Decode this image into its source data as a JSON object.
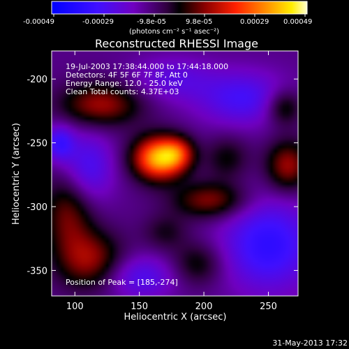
{
  "colorbar": {
    "ticks": [
      "-0.00049",
      "-0.00029",
      "-9.8e-05",
      "9.8e-05",
      "0.00029",
      "0.00049"
    ],
    "unit_label": "(photons cm⁻² s⁻¹ asec⁻²)"
  },
  "plot": {
    "title": "Reconstructed RHESSI Image",
    "xlabel": "Heliocentric X (arcsec)",
    "ylabel": "Heliocentric Y (arcsec)",
    "info_lines": [
      "19-Jul-2003 17:38:44.000 to 17:44:18.000",
      "Detectors: 4F 5F 6F 7F 8F, Att 0",
      "Energy Range: 12.0 - 25.0 keV",
      "Clean    Total counts: 4.37E+03"
    ],
    "peak_label": "Position of Peak = [185,-274]",
    "timestamp": "31-May-2013 17:32"
  },
  "chart_data": {
    "type": "heatmap",
    "title": "Reconstructed RHESSI Image",
    "xlabel": "Heliocentric X (arcsec)",
    "ylabel": "Heliocentric Y (arcsec)",
    "xlim": [
      82,
      273
    ],
    "ylim": [
      -370,
      -178
    ],
    "xticks": [
      100,
      150,
      200,
      250
    ],
    "yticks": [
      -200,
      -250,
      -300,
      -350
    ],
    "clim": [
      -0.00049,
      0.00049
    ],
    "colormap": "blue-black-red-yellow-white",
    "peak": {
      "x": 185,
      "y": -274
    },
    "blobs": [
      {
        "x": 165,
        "y": -262,
        "sx": 14,
        "sy": 12,
        "v": 0.00049
      },
      {
        "x": 180,
        "y": -258,
        "sx": 9,
        "sy": 9,
        "v": 0.0002
      },
      {
        "x": 120,
        "y": -220,
        "sx": 22,
        "sy": 12,
        "v": 0.00024
      },
      {
        "x": 95,
        "y": -305,
        "sx": 14,
        "sy": 22,
        "v": 0.0002
      },
      {
        "x": 112,
        "y": -342,
        "sx": 18,
        "sy": 16,
        "v": 0.00023
      },
      {
        "x": 205,
        "y": -295,
        "sx": 20,
        "sy": 10,
        "v": 0.00022
      },
      {
        "x": 218,
        "y": -262,
        "sx": 12,
        "sy": 12,
        "v": 0.00012
      },
      {
        "x": 265,
        "y": -268,
        "sx": 12,
        "sy": 14,
        "v": 0.00024
      },
      {
        "x": 262,
        "y": -222,
        "sx": 10,
        "sy": 10,
        "v": 0.00018
      },
      {
        "x": 170,
        "y": -320,
        "sx": 12,
        "sy": 10,
        "v": 0.0001
      },
      {
        "x": 195,
        "y": -345,
        "sx": 14,
        "sy": 12,
        "v": 0.00014
      },
      {
        "x": 230,
        "y": -215,
        "sx": 25,
        "sy": 15,
        "v": -0.00018
      },
      {
        "x": 250,
        "y": -330,
        "sx": 25,
        "sy": 25,
        "v": -0.00024
      },
      {
        "x": 110,
        "y": -270,
        "sx": 14,
        "sy": 20,
        "v": -0.00018
      },
      {
        "x": 150,
        "y": -355,
        "sx": 20,
        "sy": 12,
        "v": -0.00016
      },
      {
        "x": 175,
        "y": -200,
        "sx": 22,
        "sy": 12,
        "v": -0.00012
      },
      {
        "x": 88,
        "y": -250,
        "sx": 8,
        "sy": 10,
        "v": -0.0002
      }
    ]
  }
}
